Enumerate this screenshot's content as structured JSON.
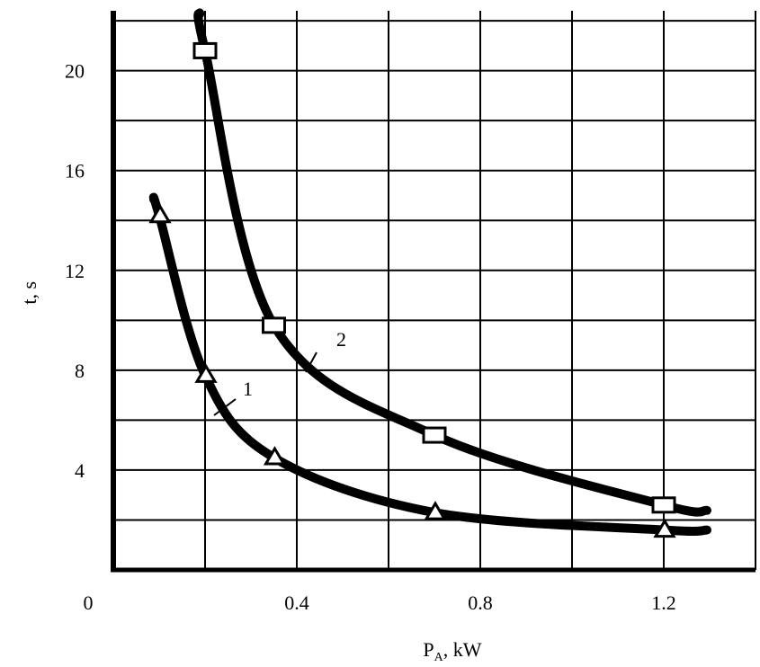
{
  "chart_data": {
    "type": "line",
    "title": "",
    "xlabel_main": "P",
    "xlabel_sub": "A",
    "xlabel_rest": ", kW",
    "ylabel": "t, s",
    "xlim": [
      0,
      1.4
    ],
    "ylim": [
      0,
      22.4
    ],
    "x_ticks": [
      {
        "value": 0,
        "label": "0"
      },
      {
        "value": 0.4,
        "label": "0.4"
      },
      {
        "value": 0.8,
        "label": "0.8"
      },
      {
        "value": 1.2,
        "label": "1.2"
      }
    ],
    "y_ticks": [
      {
        "value": 4,
        "label": "4"
      },
      {
        "value": 8,
        "label": "8"
      },
      {
        "value": 12,
        "label": "12"
      },
      {
        "value": 16,
        "label": "16"
      },
      {
        "value": 20,
        "label": "20"
      }
    ],
    "grid": true,
    "series": [
      {
        "name": "1",
        "marker": "triangle",
        "x": [
          0.1,
          0.2,
          0.35,
          0.7,
          1.2
        ],
        "y": [
          14.2,
          7.8,
          4.5,
          2.3,
          1.6
        ]
      },
      {
        "name": "2",
        "marker": "square",
        "x": [
          0.2,
          0.35,
          0.7,
          1.2
        ],
        "y": [
          20.8,
          9.8,
          5.4,
          2.6
        ]
      }
    ]
  }
}
